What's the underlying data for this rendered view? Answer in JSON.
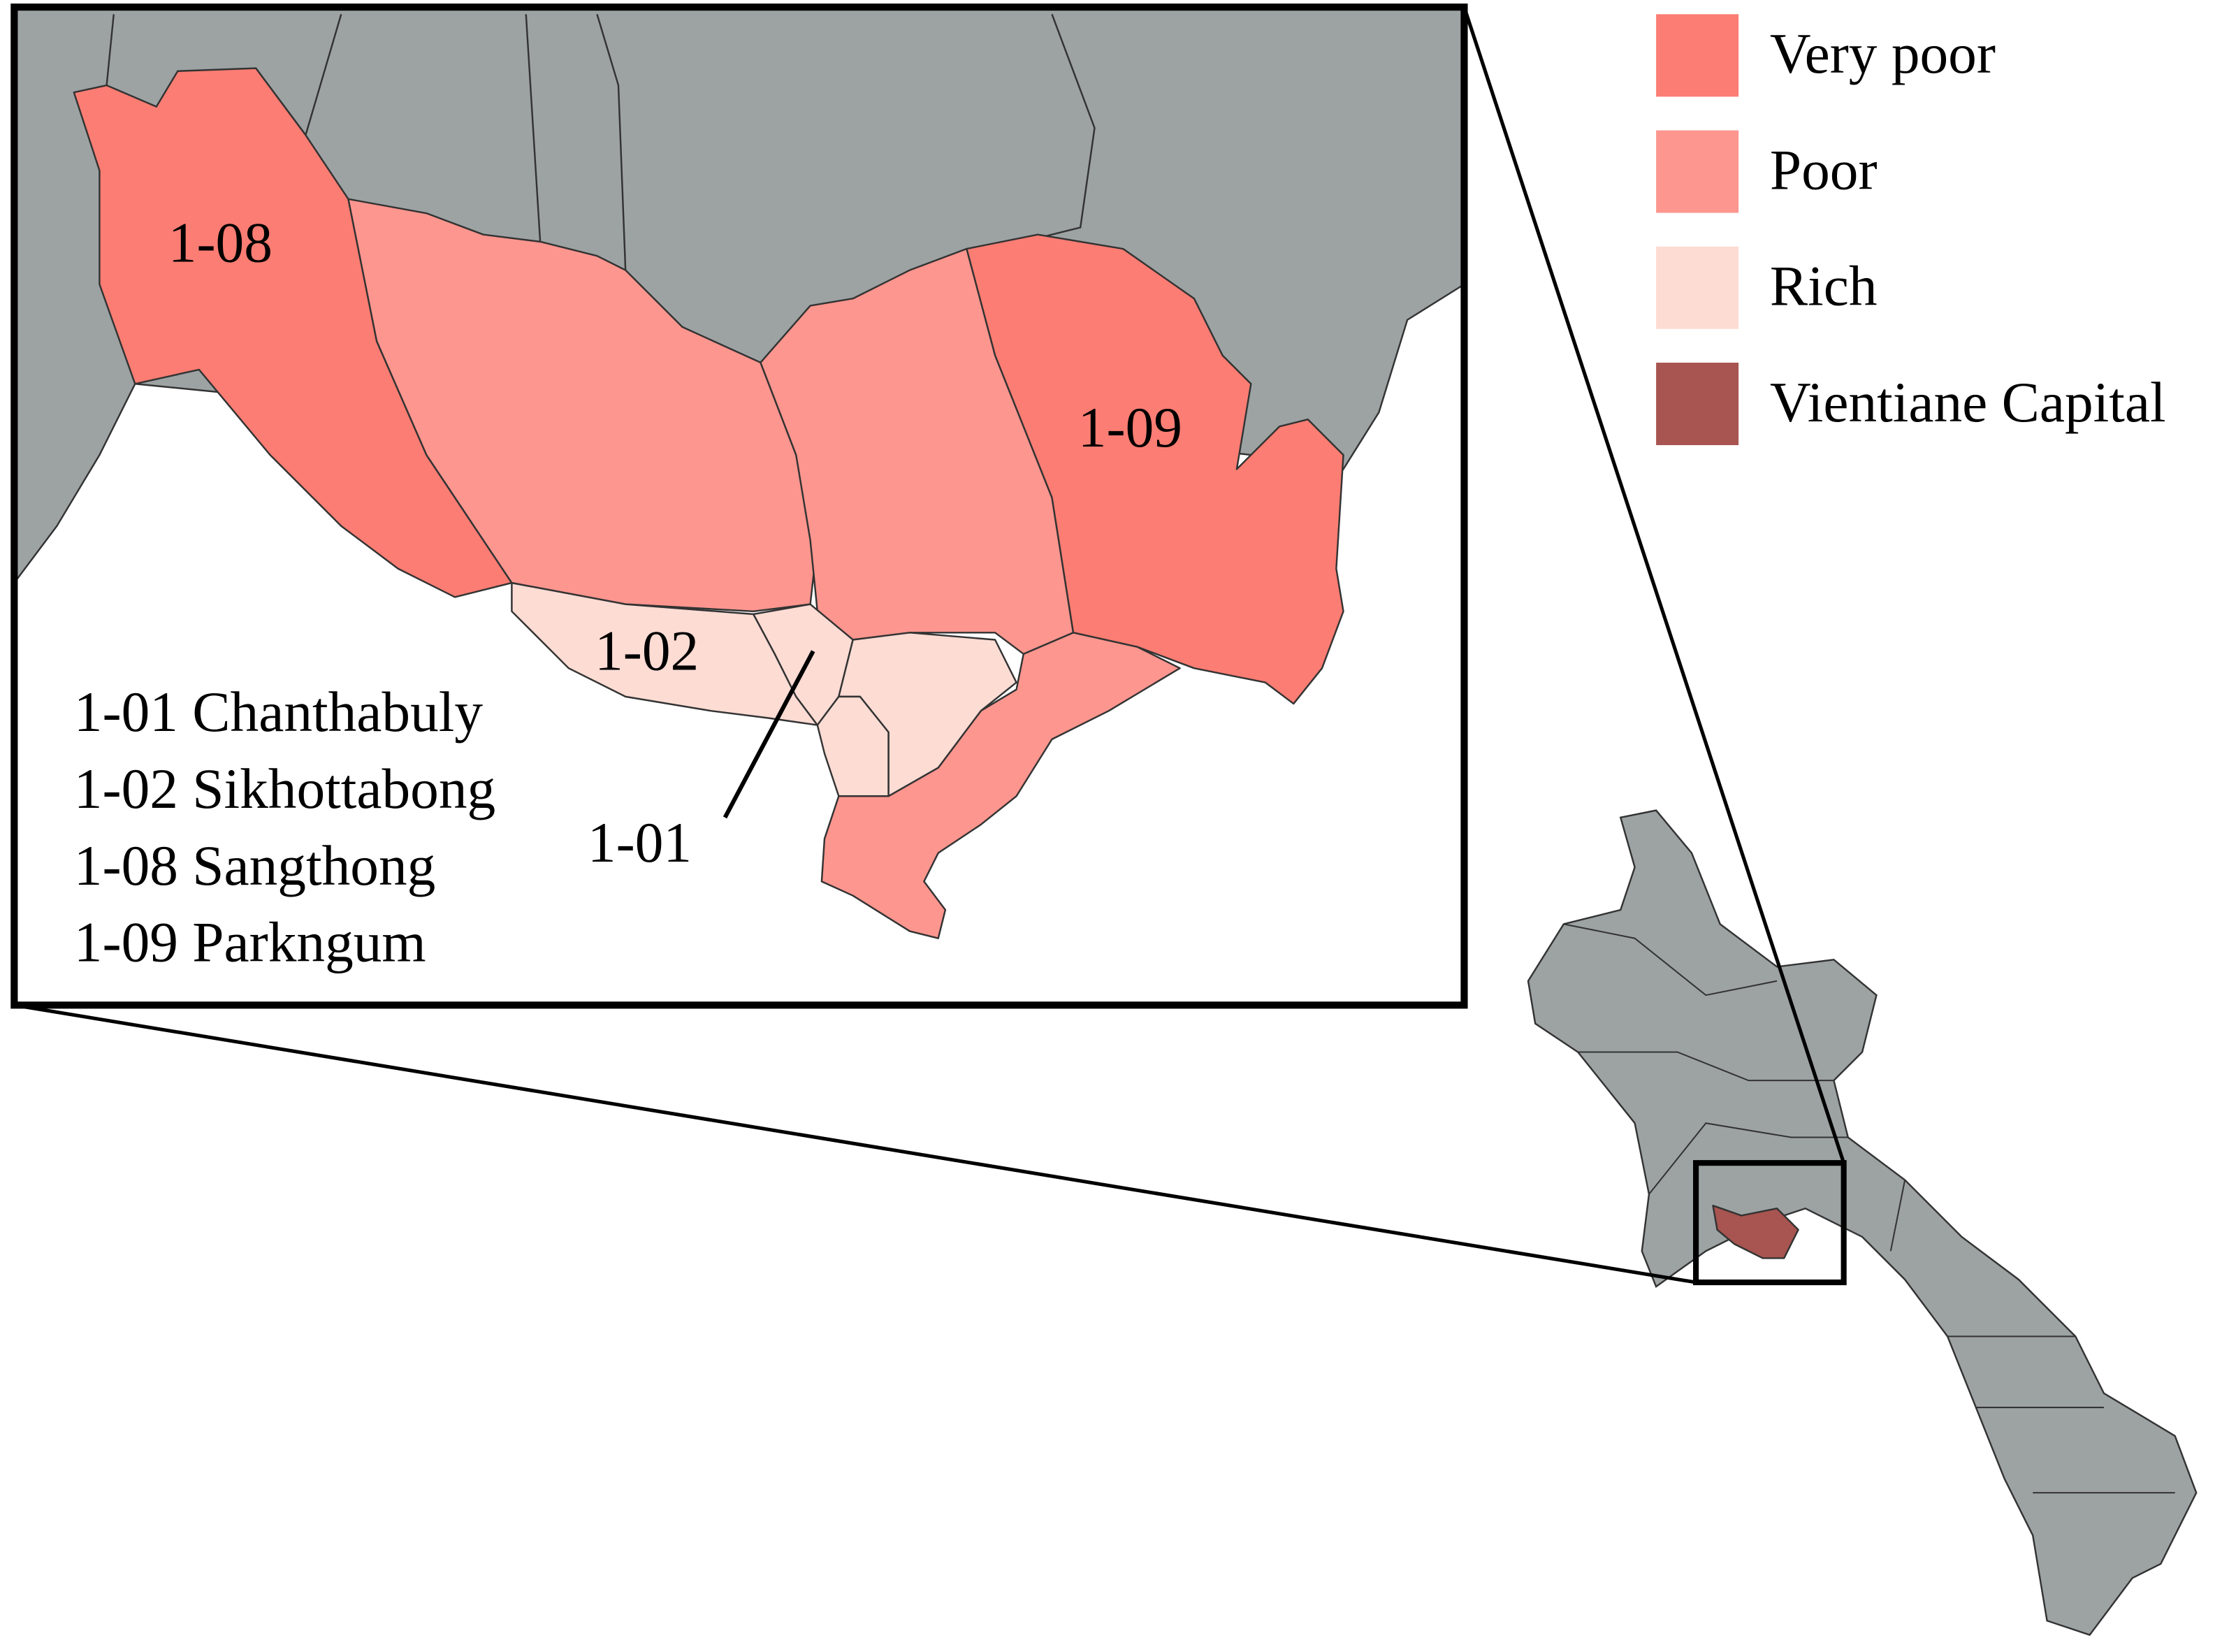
{
  "legend": [
    {
      "label": "Very poor",
      "color": "#fb7d73"
    },
    {
      "label": "Poor",
      "color": "#fc968f"
    },
    {
      "label": "Rich",
      "color": "#fddcd4"
    },
    {
      "label": "Vientiane Capital",
      "color": "#a85450"
    }
  ],
  "district_labels": [
    "1-08",
    "1-09",
    "1-02",
    "1-01"
  ],
  "district_list": [
    "1-01 Chanthabuly",
    "1-02 Sikhottabong",
    "1-08 Sangthong",
    "1-09 Parkngum"
  ]
}
